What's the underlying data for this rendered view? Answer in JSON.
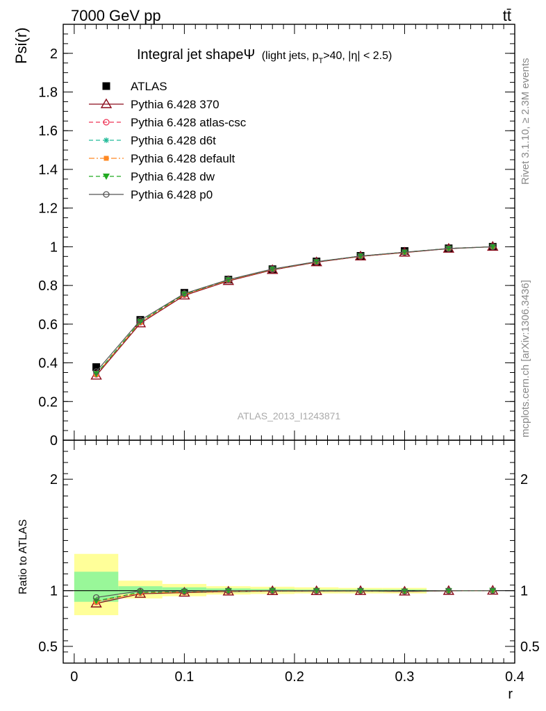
{
  "header": {
    "energy_label": "7000 GeV pp",
    "process_label": "tt̄"
  },
  "side_labels": {
    "rivet": "Rivet 3.1.10, ≥ 2.3M events",
    "mcplots": "mcplots.cern.ch [arXiv:1306.3436]"
  },
  "chart_data": [
    {
      "type": "line",
      "title_main": "Integral jet shape",
      "title_psi": "Ψ",
      "title_sub_prefix": "(light jets, p",
      "title_sub_T": "T",
      "title_sub_suffix": ">40, |η| < 2.5)",
      "ylabel": "Psi(r)",
      "xlabel": "",
      "xlim": [
        -0.01,
        0.4
      ],
      "ylim": [
        0,
        2.15
      ],
      "y_ticks": [
        0,
        0.2,
        0.4,
        0.6,
        0.8,
        1,
        1.2,
        1.4,
        1.6,
        1.8,
        2
      ],
      "y_tick_labels": [
        "0",
        "0.2",
        "0.4",
        "0.6",
        "0.8",
        "1",
        "1.2",
        "1.4",
        "1.6",
        "1.8",
        "2"
      ],
      "legend_position": "top-left",
      "watermark": "ATLAS_2013_I1243871",
      "x": [
        0.02,
        0.06,
        0.1,
        0.14,
        0.18,
        0.22,
        0.26,
        0.3,
        0.34,
        0.38
      ],
      "series": [
        {
          "name": "ATLAS",
          "color": "#000000",
          "marker": "square",
          "line": "none",
          "values": [
            0.378,
            0.622,
            0.762,
            0.83,
            0.884,
            0.924,
            0.953,
            0.978,
            0.992,
            1.0
          ]
        },
        {
          "name": "Pythia 6.428 370",
          "color": "#8b0a1a",
          "marker": "triangle-open",
          "line": "solid",
          "values": [
            0.334,
            0.604,
            0.748,
            0.823,
            0.88,
            0.92,
            0.95,
            0.97,
            0.99,
            1.0
          ]
        },
        {
          "name": "Pythia 6.428 atlas-csc",
          "color": "#ee3355",
          "marker": "circle-open",
          "line": "dashed",
          "values": [
            0.34,
            0.61,
            0.752,
            0.826,
            0.882,
            0.921,
            0.951,
            0.971,
            0.991,
            1.0
          ]
        },
        {
          "name": "Pythia 6.428 d6t",
          "color": "#22bb99",
          "marker": "star",
          "line": "dashed",
          "values": [
            0.342,
            0.612,
            0.754,
            0.828,
            0.883,
            0.922,
            0.952,
            0.972,
            0.991,
            1.0
          ]
        },
        {
          "name": "Pythia 6.428 default",
          "color": "#ff8822",
          "marker": "square-filled",
          "line": "dashdot",
          "values": [
            0.341,
            0.611,
            0.753,
            0.827,
            0.883,
            0.922,
            0.951,
            0.971,
            0.991,
            1.0
          ]
        },
        {
          "name": "Pythia 6.428 dw",
          "color": "#22aa22",
          "marker": "triangle-down",
          "line": "dashed",
          "values": [
            0.343,
            0.613,
            0.755,
            0.829,
            0.884,
            0.923,
            0.952,
            0.972,
            0.991,
            1.0
          ]
        },
        {
          "name": "Pythia 6.428 p0",
          "color": "#555555",
          "marker": "circle-open",
          "line": "solid",
          "values": [
            0.355,
            0.62,
            0.758,
            0.83,
            0.885,
            0.923,
            0.952,
            0.972,
            0.991,
            1.0
          ]
        }
      ]
    },
    {
      "type": "line",
      "ylabel": "Ratio to ATLAS",
      "xlabel": "r",
      "xlim": [
        -0.01,
        0.4
      ],
      "ylim": [
        0.35,
        2.35
      ],
      "y_ticks": [
        0.5,
        1,
        2
      ],
      "y_tick_labels": [
        "0.5",
        "1",
        "2"
      ],
      "x_ticks": [
        0,
        0.1,
        0.2,
        0.3,
        0.4
      ],
      "x_tick_labels": [
        "0",
        "0.1",
        "0.2",
        "0.3",
        "0.4"
      ],
      "reference_line": 1,
      "bands": {
        "edges": [
          0,
          0.04,
          0.08,
          0.12,
          0.16,
          0.2,
          0.24,
          0.28,
          0.32
        ],
        "inner_color": "#99f799",
        "outer_color": "#ffff99",
        "inner": [
          [
            0.9,
            1.17
          ],
          [
            0.97,
            1.04
          ],
          [
            0.98,
            1.03
          ],
          [
            0.985,
            1.02
          ],
          [
            0.99,
            1.015
          ],
          [
            0.99,
            1.01
          ],
          [
            0.99,
            1.01
          ],
          [
            0.99,
            1.01
          ]
        ],
        "outer": [
          [
            0.78,
            1.33
          ],
          [
            0.93,
            1.09
          ],
          [
            0.95,
            1.06
          ],
          [
            0.965,
            1.04
          ],
          [
            0.97,
            1.035
          ],
          [
            0.975,
            1.03
          ],
          [
            0.975,
            1.025
          ],
          [
            0.975,
            1.025
          ]
        ]
      },
      "x": [
        0.02,
        0.06,
        0.1,
        0.14,
        0.18,
        0.22,
        0.26,
        0.3,
        0.34,
        0.38
      ],
      "series": [
        {
          "name": "Pythia 6.428 370",
          "color": "#8b0a1a",
          "marker": "triangle-open",
          "line": "solid",
          "values": [
            0.885,
            0.972,
            0.982,
            0.992,
            0.996,
            0.996,
            0.997,
            0.992,
            0.998,
            1.0
          ]
        },
        {
          "name": "Pythia 6.428 atlas-csc",
          "color": "#ee3355",
          "marker": "circle-open",
          "line": "dashed",
          "values": [
            0.9,
            0.981,
            0.987,
            0.995,
            0.998,
            0.997,
            0.998,
            0.993,
            0.999,
            1.0
          ]
        },
        {
          "name": "Pythia 6.428 d6t",
          "color": "#22bb99",
          "marker": "star",
          "line": "dashed",
          "values": [
            0.905,
            0.984,
            0.99,
            0.998,
            0.999,
            0.998,
            0.999,
            0.994,
            0.999,
            1.0
          ]
        },
        {
          "name": "Pythia 6.428 default",
          "color": "#ff8822",
          "marker": "square-filled",
          "line": "dashdot",
          "values": [
            0.902,
            0.982,
            0.988,
            0.996,
            0.999,
            0.998,
            0.998,
            0.993,
            0.999,
            1.0
          ]
        },
        {
          "name": "Pythia 6.428 dw",
          "color": "#22aa22",
          "marker": "triangle-down",
          "line": "dashed",
          "values": [
            0.908,
            0.986,
            0.991,
            0.999,
            1.0,
            0.999,
            0.999,
            0.994,
            0.999,
            1.0
          ]
        },
        {
          "name": "Pythia 6.428 p0",
          "color": "#555555",
          "marker": "circle-open",
          "line": "solid",
          "values": [
            0.939,
            0.997,
            0.995,
            1.0,
            1.001,
            0.999,
            0.999,
            0.994,
            0.999,
            1.0
          ]
        }
      ]
    }
  ]
}
